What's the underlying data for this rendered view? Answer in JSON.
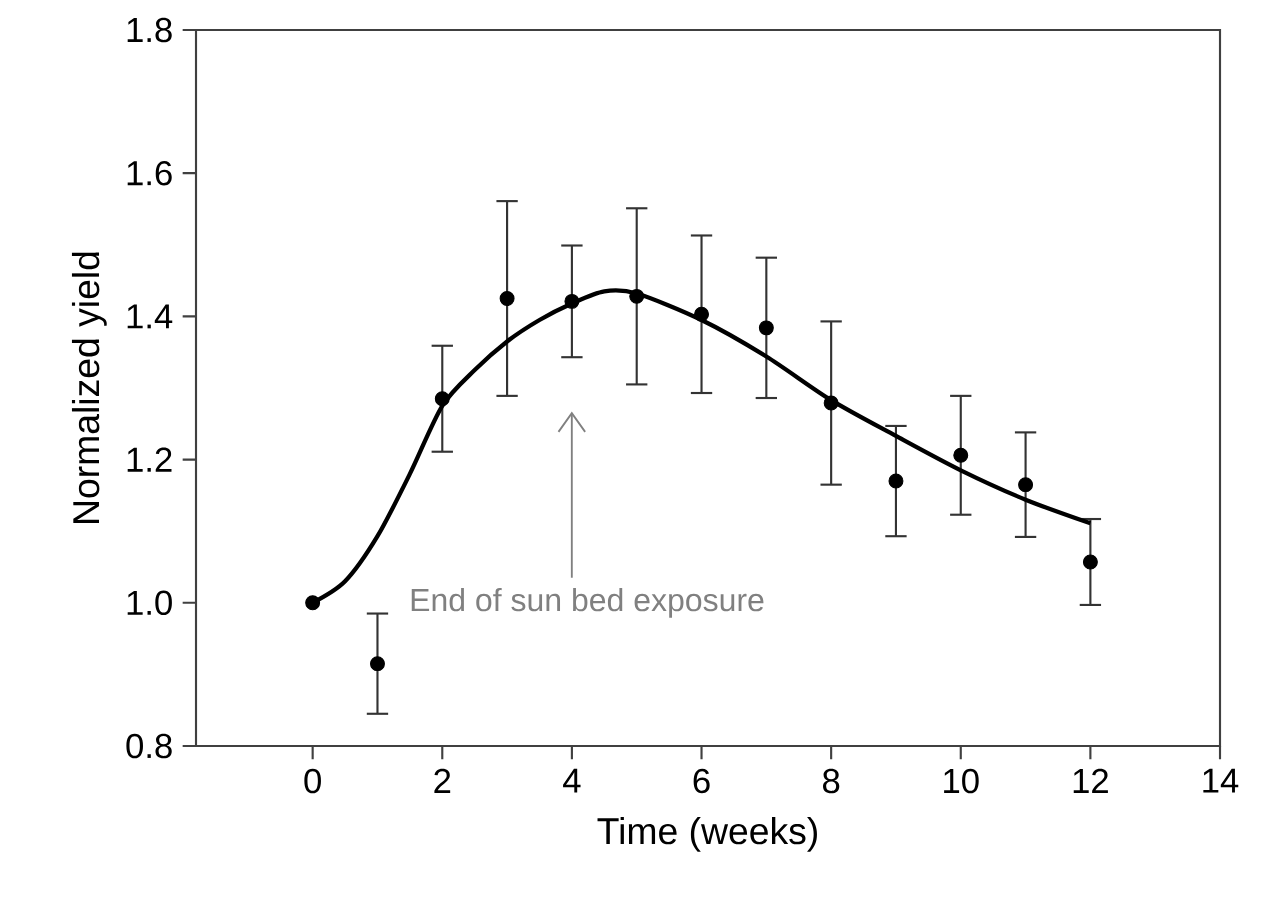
{
  "chart_data": {
    "type": "scatter",
    "xlabel": "Time (weeks)",
    "ylabel": "Normalized yield",
    "xlim": [
      -1.8,
      14
    ],
    "xticks": [
      0,
      2,
      4,
      6,
      8,
      10,
      12,
      14
    ],
    "ylim": [
      0.8,
      1.8
    ],
    "yticks": [
      0.8,
      {
        "value": 1.0,
        "label": "1.0"
      },
      1.2,
      1.4,
      1.6,
      1.8
    ],
    "grid": false,
    "marker": "circle",
    "series": [
      {
        "color": "#000000",
        "x": [
          0,
          1,
          2,
          3,
          4,
          5,
          6,
          7,
          8,
          9,
          10,
          11,
          12
        ],
        "values": [
          1.0,
          0.915,
          1.285,
          1.425,
          1.421,
          1.428,
          1.403,
          1.384,
          1.279,
          1.17,
          1.206,
          1.165,
          1.057
        ],
        "errors": [
          null,
          0.07,
          0.074,
          0.136,
          0.078,
          0.123,
          0.11,
          0.098,
          0.114,
          0.077,
          0.083,
          0.073,
          0.06
        ]
      },
      {
        "type": "line",
        "color": "#000000",
        "marker": "none",
        "line_style": "solid",
        "x": [
          0,
          0.5,
          1,
          1.5,
          2,
          2.5,
          3,
          3.5,
          4,
          4.5,
          5,
          6,
          7,
          8,
          9,
          10,
          11,
          12
        ],
        "values": [
          1.0,
          1.03,
          1.093,
          1.18,
          1.275,
          1.325,
          1.365,
          1.395,
          1.418,
          1.435,
          1.432,
          1.395,
          1.344,
          1.283,
          1.233,
          1.185,
          1.144,
          1.111
        ]
      }
    ],
    "annotations": [
      "End of sun bed exposure"
    ]
  }
}
